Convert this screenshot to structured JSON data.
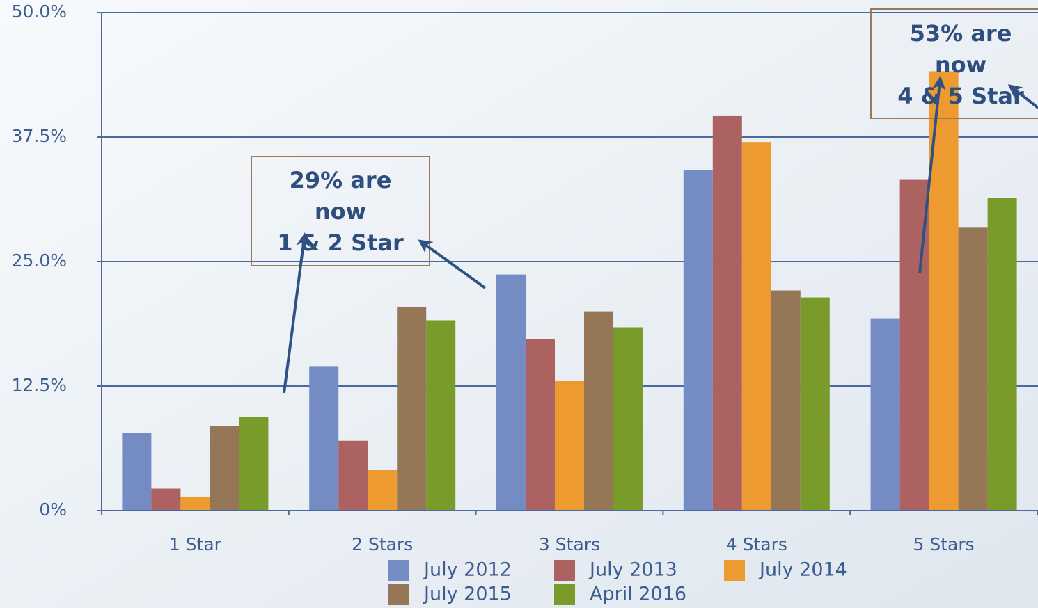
{
  "chart_data": {
    "type": "bar",
    "categories": [
      "1 Star",
      "2 Stars",
      "3 Stars",
      "4 Stars",
      "5 Stars"
    ],
    "series": [
      {
        "name": "July 2012",
        "color": "#748bc4",
        "values": [
          7.75,
          14.5,
          23.7,
          34.2,
          19.3
        ]
      },
      {
        "name": "July 2013",
        "color": "#ab6260",
        "values": [
          2.2,
          7.0,
          17.2,
          39.6,
          33.2
        ]
      },
      {
        "name": "July 2014",
        "color": "#ed9a30",
        "values": [
          1.4,
          4.05,
          13.0,
          37.0,
          44.1
        ]
      },
      {
        "name": "July 2015",
        "color": "#957757",
        "values": [
          8.5,
          20.4,
          20.0,
          22.1,
          28.4
        ]
      },
      {
        "name": "April 2016",
        "color": "#789b2a",
        "values": [
          9.4,
          19.1,
          18.4,
          21.4,
          31.4
        ]
      }
    ],
    "ylim": [
      0,
      50
    ],
    "yticks": [
      {
        "value": 0,
        "label": "0%"
      },
      {
        "value": 12.5,
        "label": "12.5%"
      },
      {
        "value": 25,
        "label": "25.0%"
      },
      {
        "value": 37.5,
        "label": "37.5%"
      },
      {
        "value": 50,
        "label": "50.0%"
      }
    ],
    "grid": true,
    "legend": "bottom",
    "annotations": [
      [
        "29% are",
        "now",
        "1 & 2 Star"
      ],
      [
        "53% are",
        "now",
        "4 & 5 Star"
      ]
    ]
  }
}
